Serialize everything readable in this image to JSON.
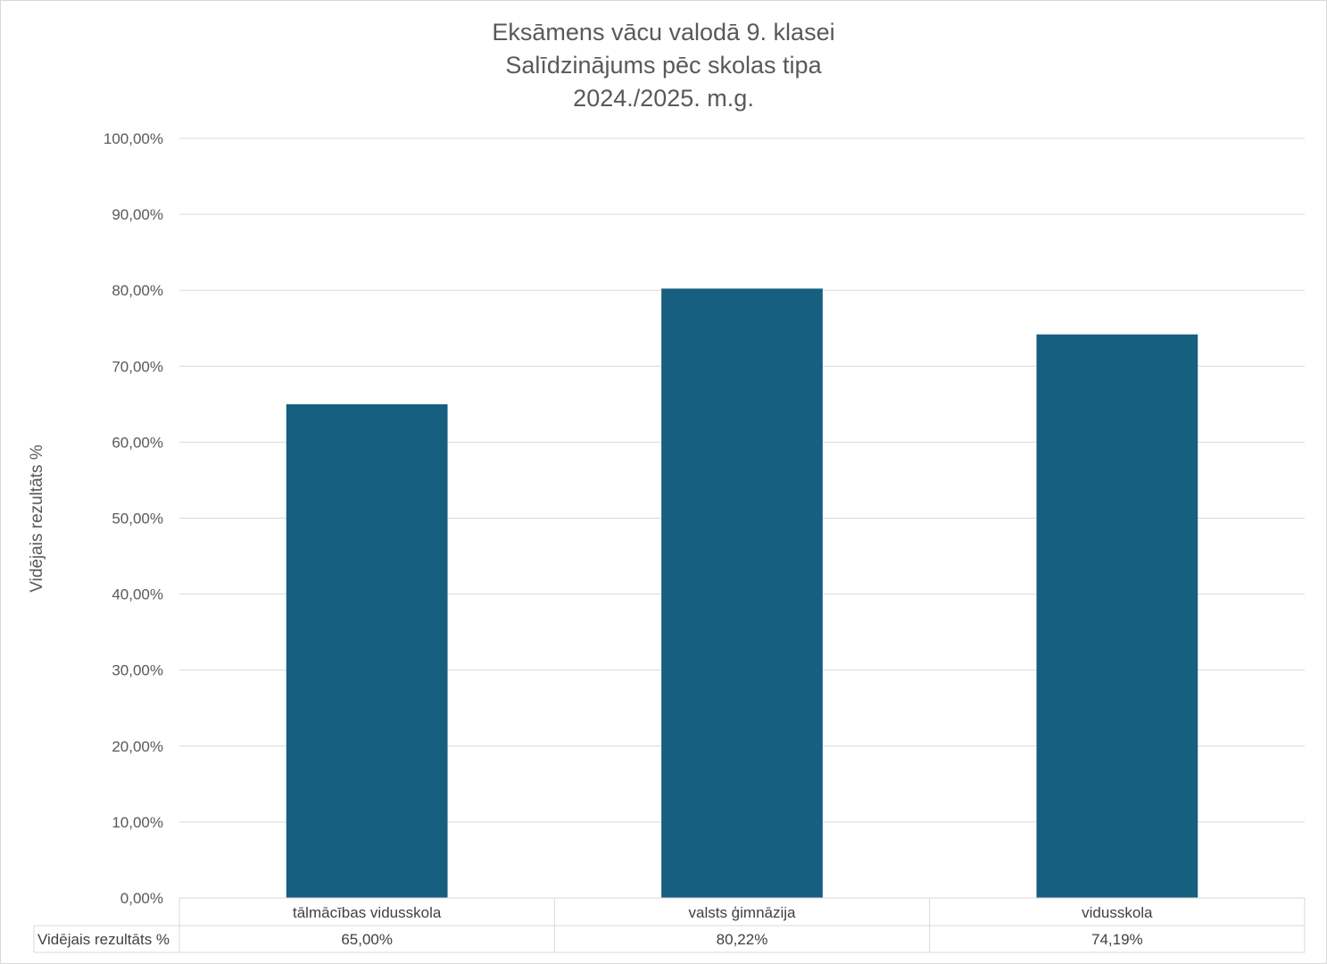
{
  "chart_data": {
    "type": "bar",
    "title_lines": [
      "Eksāmens vācu valodā 9. klasei",
      "Salīdzinājums pēc skolas tipa",
      "2024./2025. m.g."
    ],
    "ylabel": "Vidējais rezultāts %",
    "xlabel": "",
    "categories": [
      "tālmācības vidusskola",
      "valsts ģimnāzija",
      "vidusskola"
    ],
    "series": [
      {
        "name": "Vidējais rezultāts %",
        "values": [
          65.0,
          80.22,
          74.19
        ],
        "color": "#175f80"
      }
    ],
    "ylim": [
      0,
      100
    ],
    "ytick_step": 10,
    "ytick_labels": [
      "0,00%",
      "10,00%",
      "20,00%",
      "30,00%",
      "40,00%",
      "50,00%",
      "60,00%",
      "70,00%",
      "80,00%",
      "90,00%",
      "100,00%"
    ],
    "data_table": {
      "row_label": "Vidējais rezultāts %",
      "values": [
        "65,00%",
        "80,22%",
        "74,19%"
      ]
    },
    "grid": true,
    "legend": "none",
    "colors": {
      "gridline": "#d9d9d9",
      "text": "#595959",
      "bar": "#175f80"
    }
  }
}
